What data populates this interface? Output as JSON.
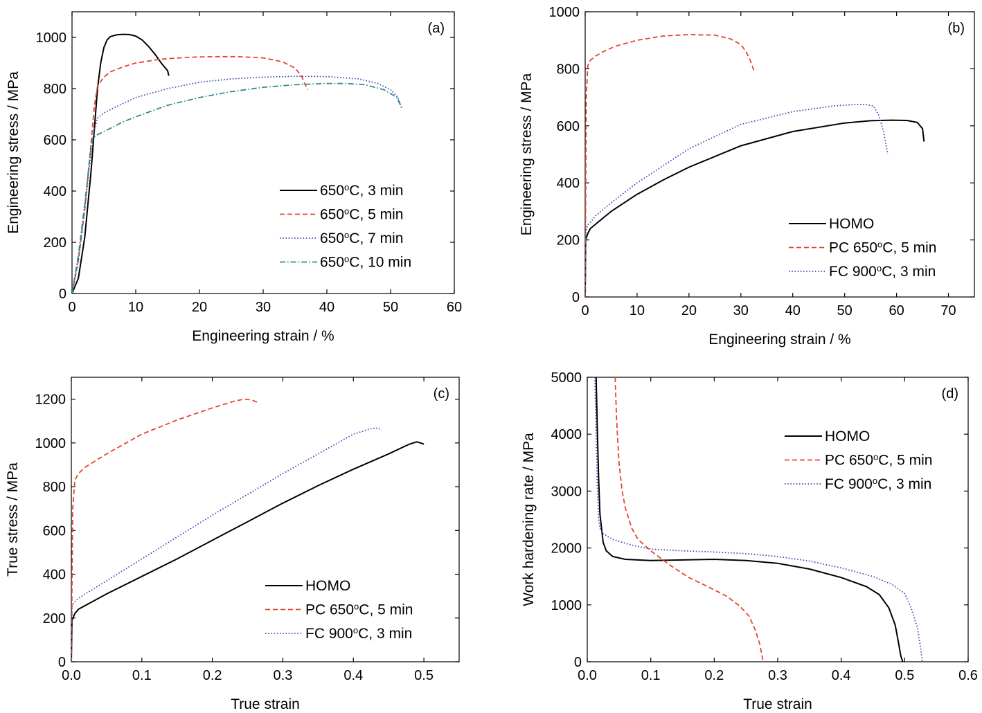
{
  "colors": {
    "black": "#000000",
    "red": "#e8432b",
    "blue": "#3a4fb8",
    "teal": "#2a8c8c"
  },
  "chart_data": [
    {
      "panel": "(a)",
      "type": "line",
      "xlabel": "Engineering strain / %",
      "ylabel": "Engineering stress / MPa",
      "xlim": [
        0,
        60
      ],
      "ylim": [
        0,
        1100
      ],
      "xticks": [
        0,
        10,
        20,
        30,
        40,
        50,
        60
      ],
      "yticks": [
        0,
        200,
        400,
        600,
        800,
        1000
      ],
      "legend_position": "bottom-right",
      "series": [
        {
          "name": "650°C, 3 min",
          "name_parts": [
            "650",
            "o",
            "C, 3 min"
          ],
          "color": "black",
          "dash": "solid",
          "x": [
            0,
            1,
            2,
            3,
            4,
            4.5,
            5,
            5.5,
            6,
            7,
            8,
            9,
            10,
            11,
            12,
            13,
            14,
            15,
            15.2
          ],
          "y": [
            0,
            60,
            220,
            480,
            800,
            900,
            960,
            990,
            1003,
            1010,
            1012,
            1011,
            1005,
            990,
            965,
            935,
            900,
            870,
            850
          ]
        },
        {
          "name": "650°C, 5 min",
          "name_parts": [
            "650",
            "o",
            "C, 5 min"
          ],
          "color": "red",
          "dash": "dashed",
          "x": [
            0,
            1,
            2,
            3,
            3.5,
            4,
            5,
            6,
            8,
            10,
            14,
            18,
            22,
            26,
            30,
            33,
            35,
            36,
            36.5,
            37
          ],
          "y": [
            0,
            130,
            330,
            590,
            730,
            810,
            845,
            865,
            885,
            900,
            915,
            922,
            925,
            925,
            920,
            905,
            880,
            850,
            820,
            795
          ]
        },
        {
          "name": "650°C, 7 min",
          "name_parts": [
            "650",
            "o",
            "C, 7 min"
          ],
          "color": "blue",
          "dash": "dotted",
          "x": [
            0,
            1,
            2,
            3,
            3.5,
            4,
            5,
            7,
            10,
            15,
            20,
            25,
            30,
            35,
            40,
            45,
            48,
            50,
            51,
            51.5,
            51.8
          ],
          "y": [
            0,
            130,
            330,
            560,
            640,
            685,
            705,
            730,
            765,
            800,
            825,
            838,
            845,
            848,
            847,
            838,
            820,
            795,
            770,
            745,
            720
          ]
        },
        {
          "name": "650°C, 10 min",
          "name_parts": [
            "650",
            "o",
            "C, 10 min"
          ],
          "color": "teal",
          "dash": "dashdot",
          "x": [
            0,
            1,
            2,
            3,
            3.3,
            4,
            6,
            8,
            10,
            15,
            20,
            25,
            30,
            35,
            40,
            43,
            46,
            49,
            51,
            51.8
          ],
          "y": [
            0,
            150,
            350,
            575,
            608,
            620,
            645,
            670,
            690,
            735,
            765,
            788,
            805,
            815,
            820,
            820,
            815,
            795,
            765,
            720
          ]
        }
      ]
    },
    {
      "panel": "(b)",
      "type": "line",
      "xlabel": "Engineering strain / %",
      "ylabel": "Engineering stress / MPa",
      "xlim": [
        0,
        75
      ],
      "ylim": [
        0,
        1000
      ],
      "xticks": [
        0,
        10,
        20,
        30,
        40,
        50,
        60,
        70
      ],
      "yticks": [
        0,
        200,
        400,
        600,
        800,
        1000
      ],
      "legend_position": "bottom-right",
      "series": [
        {
          "name": "HOMO",
          "name_parts": [
            "HOMO"
          ],
          "color": "black",
          "dash": "solid",
          "x": [
            0,
            0.1,
            0.5,
            1,
            2,
            5,
            10,
            15,
            20,
            30,
            40,
            50,
            55,
            59,
            62,
            64,
            65,
            65.3
          ],
          "y": [
            0,
            200,
            222,
            240,
            255,
            300,
            360,
            410,
            455,
            530,
            580,
            610,
            618,
            620,
            619,
            612,
            590,
            545
          ]
        },
        {
          "name": "PC 650°C, 5 min",
          "name_parts": [
            "PC 650",
            "o",
            "C, 5 min"
          ],
          "color": "red",
          "dash": "dashed",
          "x": [
            0,
            0.2,
            0.5,
            1,
            2,
            4,
            6,
            10,
            15,
            20,
            25,
            28,
            30,
            31,
            31.8,
            32.5
          ],
          "y": [
            0,
            700,
            810,
            830,
            845,
            865,
            880,
            900,
            915,
            920,
            918,
            905,
            885,
            860,
            830,
            795
          ]
        },
        {
          "name": "FC 900°C, 3 min",
          "name_parts": [
            "FC 900",
            "o",
            "C, 3 min"
          ],
          "color": "blue",
          "dash": "dotted",
          "x": [
            0,
            0.1,
            0.5,
            1,
            2,
            5,
            10,
            20,
            30,
            40,
            48,
            52,
            54,
            55.5,
            56.5,
            57.5,
            58.3
          ],
          "y": [
            0,
            230,
            252,
            262,
            285,
            330,
            400,
            520,
            605,
            650,
            670,
            675,
            675,
            670,
            640,
            580,
            500
          ]
        }
      ]
    },
    {
      "panel": "(c)",
      "type": "line",
      "xlabel": "True strain",
      "ylabel": "True stress / MPa",
      "xlim": [
        0,
        0.55
      ],
      "ylim": [
        0,
        1300
      ],
      "xticks": [
        0.0,
        0.1,
        0.2,
        0.3,
        0.4,
        0.5
      ],
      "xticklabels": [
        "0.0",
        "0.1",
        "0.2",
        "0.3",
        "0.4",
        "0.5"
      ],
      "yticks": [
        0,
        200,
        400,
        600,
        800,
        1000,
        1200
      ],
      "legend_position": "bottom-right",
      "series": [
        {
          "name": "HOMO",
          "name_parts": [
            "HOMO"
          ],
          "color": "black",
          "dash": "solid",
          "x": [
            0,
            0.001,
            0.005,
            0.01,
            0.05,
            0.1,
            0.15,
            0.2,
            0.25,
            0.3,
            0.35,
            0.4,
            0.45,
            0.48,
            0.49,
            0.5
          ],
          "y": [
            0,
            190,
            220,
            240,
            310,
            390,
            470,
            555,
            640,
            725,
            805,
            880,
            950,
            995,
            1005,
            995
          ]
        },
        {
          "name": "PC 650°C, 5 min",
          "name_parts": [
            "PC 650",
            "o",
            "C, 5 min"
          ],
          "color": "red",
          "dash": "dashed",
          "x": [
            0,
            0.002,
            0.005,
            0.01,
            0.02,
            0.05,
            0.1,
            0.15,
            0.2,
            0.23,
            0.245,
            0.255,
            0.265
          ],
          "y": [
            0,
            700,
            830,
            860,
            890,
            950,
            1040,
            1105,
            1160,
            1190,
            1200,
            1197,
            1185
          ]
        },
        {
          "name": "FC 900°C, 3 min",
          "name_parts": [
            "FC 900",
            "o",
            "C, 3 min"
          ],
          "color": "blue",
          "dash": "dotted",
          "x": [
            0,
            0.001,
            0.005,
            0.01,
            0.05,
            0.1,
            0.2,
            0.3,
            0.4,
            0.425,
            0.435,
            0.44
          ],
          "y": [
            0,
            260,
            275,
            290,
            370,
            470,
            670,
            860,
            1040,
            1065,
            1068,
            1058
          ]
        }
      ]
    },
    {
      "panel": "(d)",
      "type": "line",
      "xlabel": "True strain",
      "ylabel": "Work hardening rate / MPa",
      "xlim": [
        0,
        0.6
      ],
      "ylim": [
        0,
        5000
      ],
      "xticks": [
        0.0,
        0.1,
        0.2,
        0.3,
        0.4,
        0.5,
        0.6
      ],
      "xticklabels": [
        "0.0",
        "0.1",
        "0.2",
        "0.3",
        "0.4",
        "0.5",
        "0.6"
      ],
      "yticks": [
        0,
        1000,
        2000,
        3000,
        4000,
        5000
      ],
      "legend_position": "top-right",
      "series": [
        {
          "name": "HOMO",
          "name_parts": [
            "HOMO"
          ],
          "color": "black",
          "dash": "solid",
          "x": [
            0.014,
            0.016,
            0.018,
            0.02,
            0.025,
            0.03,
            0.04,
            0.06,
            0.1,
            0.15,
            0.2,
            0.25,
            0.3,
            0.35,
            0.4,
            0.44,
            0.46,
            0.475,
            0.485,
            0.49,
            0.494,
            0.497
          ],
          "y": [
            5000,
            4000,
            3200,
            2600,
            2100,
            1950,
            1850,
            1800,
            1780,
            1790,
            1800,
            1780,
            1730,
            1630,
            1480,
            1320,
            1180,
            950,
            650,
            350,
            100,
            0
          ]
        },
        {
          "name": "PC 650°C, 5 min",
          "name_parts": [
            "PC 650",
            "o",
            "C, 5 min"
          ],
          "color": "red",
          "dash": "dashed",
          "x": [
            0.044,
            0.046,
            0.05,
            0.055,
            0.06,
            0.07,
            0.08,
            0.1,
            0.13,
            0.16,
            0.19,
            0.22,
            0.24,
            0.255,
            0.265,
            0.272,
            0.275,
            0.277
          ],
          "y": [
            5000,
            4300,
            3500,
            3000,
            2700,
            2350,
            2150,
            1950,
            1700,
            1480,
            1320,
            1150,
            980,
            800,
            550,
            300,
            120,
            0
          ]
        },
        {
          "name": "FC 900°C, 3 min",
          "name_parts": [
            "FC 900",
            "o",
            "C, 3 min"
          ],
          "color": "blue",
          "dash": "dotted",
          "x": [
            0.012,
            0.014,
            0.016,
            0.018,
            0.02,
            0.025,
            0.04,
            0.07,
            0.1,
            0.15,
            0.2,
            0.25,
            0.3,
            0.35,
            0.4,
            0.45,
            0.48,
            0.5,
            0.51,
            0.52,
            0.525,
            0.528
          ],
          "y": [
            5000,
            4000,
            3000,
            2500,
            2350,
            2250,
            2150,
            2050,
            1980,
            1950,
            1930,
            1900,
            1850,
            1770,
            1650,
            1500,
            1360,
            1200,
            950,
            600,
            250,
            0
          ]
        }
      ]
    }
  ]
}
